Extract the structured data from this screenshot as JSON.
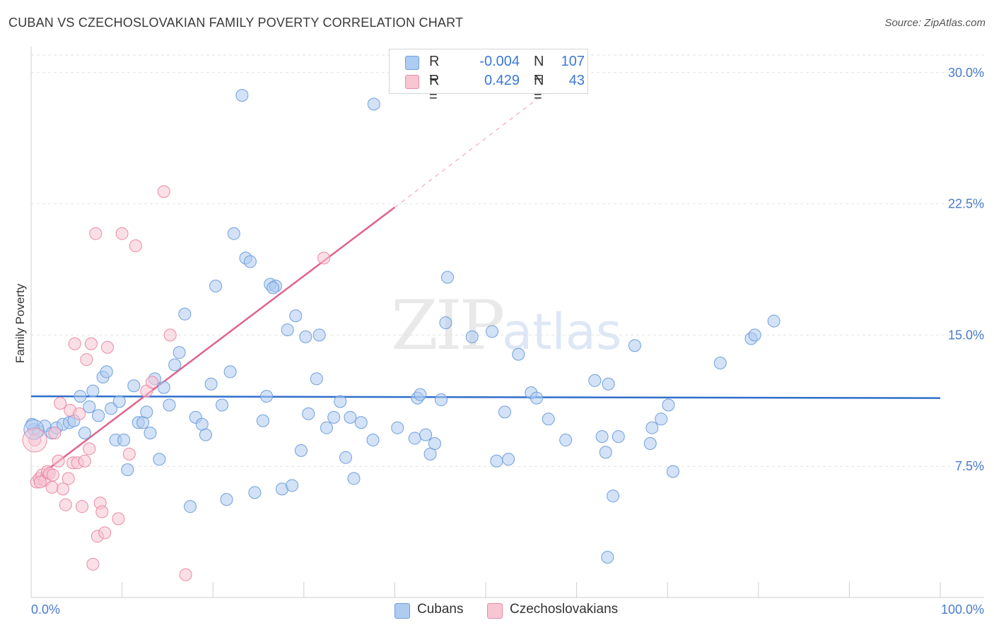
{
  "title": "CUBAN VS CZECHOSLOVAKIAN FAMILY POVERTY CORRELATION CHART",
  "source": "Source: ZipAtlas.com",
  "watermark": {
    "zip": "ZIP",
    "atlas": "atlas"
  },
  "legend": {
    "rows": [
      {
        "r_label": "R =",
        "r_value": "-0.004",
        "n_label": "N =",
        "n_value": "107",
        "color": "#aecbf1",
        "border": "#6f9fdc"
      },
      {
        "r_label": "R =",
        "r_value": "0.429",
        "n_label": "N =",
        "n_value": "43",
        "color": "#f8c5d3",
        "border": "#e98aa5"
      }
    ]
  },
  "bottom_legend": [
    {
      "label": "Cubans",
      "color": "#aecbf1",
      "border": "#6f9fdc"
    },
    {
      "label": "Czechoslovakians",
      "color": "#f8c5d3",
      "border": "#e98aa5"
    }
  ],
  "chart_data": {
    "type": "scatter",
    "title": "CUBAN VS CZECHOSLOVAKIAN FAMILY POVERTY CORRELATION CHART",
    "xlabel": "",
    "ylabel": "Family Poverty",
    "xlim": [
      0,
      100
    ],
    "ylim": [
      0,
      31
    ],
    "x_tick_labels": [
      "0.0%",
      "100.0%"
    ],
    "y_ticks": [
      7.5,
      15.0,
      22.5,
      30.0
    ],
    "y_tick_labels": [
      "7.5%",
      "15.0%",
      "22.5%",
      "30.0%"
    ],
    "series": [
      {
        "name": "Cubans",
        "color": "#6f9fdc",
        "fill": "#aecbf1",
        "trend": {
          "x": [
            0,
            100
          ],
          "y": [
            11.5,
            11.4
          ],
          "color": "#2f6fcc"
        },
        "points": [
          [
            0.3,
            9.6
          ],
          [
            0.8,
            9.5
          ],
          [
            1.5,
            9.8
          ],
          [
            2.3,
            9.4
          ],
          [
            2.8,
            9.7
          ],
          [
            3.5,
            9.9
          ],
          [
            4.2,
            10.0
          ],
          [
            4.7,
            10.1
          ],
          [
            5.4,
            11.5
          ],
          [
            5.9,
            9.4
          ],
          [
            6.4,
            10.9
          ],
          [
            6.8,
            11.8
          ],
          [
            7.4,
            10.4
          ],
          [
            7.9,
            12.6
          ],
          [
            8.3,
            12.9
          ],
          [
            8.8,
            10.8
          ],
          [
            9.3,
            9.0
          ],
          [
            9.7,
            11.2
          ],
          [
            10.2,
            9.0
          ],
          [
            10.6,
            7.3
          ],
          [
            11.3,
            12.1
          ],
          [
            11.8,
            10.0
          ],
          [
            12.3,
            10.0
          ],
          [
            12.7,
            10.6
          ],
          [
            13.1,
            9.4
          ],
          [
            13.6,
            12.5
          ],
          [
            14.1,
            7.9
          ],
          [
            14.6,
            12.0
          ],
          [
            15.2,
            11.0
          ],
          [
            15.8,
            13.3
          ],
          [
            16.3,
            14.0
          ],
          [
            16.9,
            16.2
          ],
          [
            17.5,
            5.2
          ],
          [
            18.1,
            10.3
          ],
          [
            18.8,
            9.9
          ],
          [
            19.2,
            9.3
          ],
          [
            19.8,
            12.2
          ],
          [
            20.3,
            17.8
          ],
          [
            21.0,
            11.0
          ],
          [
            21.5,
            5.6
          ],
          [
            21.9,
            12.9
          ],
          [
            22.3,
            20.8
          ],
          [
            23.2,
            28.7
          ],
          [
            23.6,
            19.4
          ],
          [
            24.1,
            19.2
          ],
          [
            24.6,
            6.0
          ],
          [
            25.5,
            10.1
          ],
          [
            25.9,
            11.5
          ],
          [
            26.3,
            17.9
          ],
          [
            26.9,
            17.8
          ],
          [
            27.6,
            6.2
          ],
          [
            28.2,
            15.3
          ],
          [
            28.7,
            6.4
          ],
          [
            29.1,
            16.1
          ],
          [
            29.7,
            8.4
          ],
          [
            30.5,
            10.5
          ],
          [
            31.4,
            12.5
          ],
          [
            31.7,
            15.0
          ],
          [
            32.5,
            9.7
          ],
          [
            33.3,
            10.3
          ],
          [
            34.0,
            11.2
          ],
          [
            34.6,
            8.0
          ],
          [
            35.1,
            10.3
          ],
          [
            35.5,
            6.8
          ],
          [
            36.3,
            10.0
          ],
          [
            37.6,
            9.0
          ],
          [
            37.7,
            28.2
          ],
          [
            40.3,
            9.7
          ],
          [
            42.2,
            9.1
          ],
          [
            42.5,
            11.4
          ],
          [
            42.8,
            11.6
          ],
          [
            43.4,
            9.3
          ],
          [
            43.9,
            8.2
          ],
          [
            44.4,
            8.8
          ],
          [
            45.1,
            11.3
          ],
          [
            45.6,
            15.7
          ],
          [
            45.8,
            18.3
          ],
          [
            48.5,
            14.9
          ],
          [
            50.7,
            15.2
          ],
          [
            51.2,
            7.8
          ],
          [
            52.1,
            10.6
          ],
          [
            52.5,
            7.9
          ],
          [
            53.6,
            13.9
          ],
          [
            55.0,
            11.7
          ],
          [
            55.6,
            11.4
          ],
          [
            56.9,
            10.2
          ],
          [
            58.8,
            9.0
          ],
          [
            62.0,
            12.4
          ],
          [
            62.8,
            9.2
          ],
          [
            63.2,
            8.3
          ],
          [
            63.5,
            12.2
          ],
          [
            64.0,
            5.8
          ],
          [
            64.6,
            9.2
          ],
          [
            66.4,
            14.4
          ],
          [
            68.1,
            8.8
          ],
          [
            68.3,
            9.7
          ],
          [
            69.3,
            10.2
          ],
          [
            70.1,
            11.0
          ],
          [
            70.6,
            7.2
          ],
          [
            75.8,
            13.4
          ],
          [
            79.2,
            14.8
          ],
          [
            79.6,
            15.0
          ],
          [
            81.7,
            15.8
          ],
          [
            63.4,
            2.3
          ],
          [
            0.1,
            9.9
          ],
          [
            30.2,
            14.9
          ],
          [
            26.6,
            17.7
          ]
        ]
      },
      {
        "name": "Czechoslovakians",
        "color": "#e98aa5",
        "fill": "#f8c5d3",
        "trend": {
          "x": [
            1.0,
            40.0
          ],
          "y": [
            7.0,
            22.3
          ],
          "dashed_to": [
            60.0,
            30.2
          ],
          "color": "#e0638c"
        },
        "points": [
          [
            0.4,
            9.0
          ],
          [
            0.6,
            6.6
          ],
          [
            0.9,
            6.8
          ],
          [
            1.2,
            7.0
          ],
          [
            1.5,
            6.7
          ],
          [
            1.8,
            7.2
          ],
          [
            2.0,
            7.1
          ],
          [
            2.3,
            6.3
          ],
          [
            2.6,
            9.4
          ],
          [
            3.0,
            7.8
          ],
          [
            3.2,
            11.1
          ],
          [
            3.5,
            6.2
          ],
          [
            3.8,
            5.3
          ],
          [
            4.1,
            6.8
          ],
          [
            4.3,
            10.7
          ],
          [
            4.6,
            7.7
          ],
          [
            4.8,
            14.5
          ],
          [
            5.1,
            7.7
          ],
          [
            5.3,
            10.5
          ],
          [
            5.6,
            5.2
          ],
          [
            5.9,
            7.8
          ],
          [
            6.1,
            13.6
          ],
          [
            6.4,
            8.5
          ],
          [
            6.6,
            14.5
          ],
          [
            6.8,
            1.9
          ],
          [
            7.1,
            20.8
          ],
          [
            7.3,
            3.5
          ],
          [
            7.6,
            5.4
          ],
          [
            7.8,
            4.9
          ],
          [
            8.1,
            3.7
          ],
          [
            8.4,
            14.3
          ],
          [
            9.6,
            4.5
          ],
          [
            10.0,
            20.8
          ],
          [
            10.8,
            8.2
          ],
          [
            11.5,
            20.1
          ],
          [
            12.7,
            11.8
          ],
          [
            13.3,
            12.3
          ],
          [
            14.6,
            23.2
          ],
          [
            15.3,
            15.0
          ],
          [
            17.0,
            1.3
          ],
          [
            32.2,
            19.4
          ],
          [
            1.0,
            6.6
          ],
          [
            2.4,
            7.0
          ]
        ]
      }
    ]
  }
}
